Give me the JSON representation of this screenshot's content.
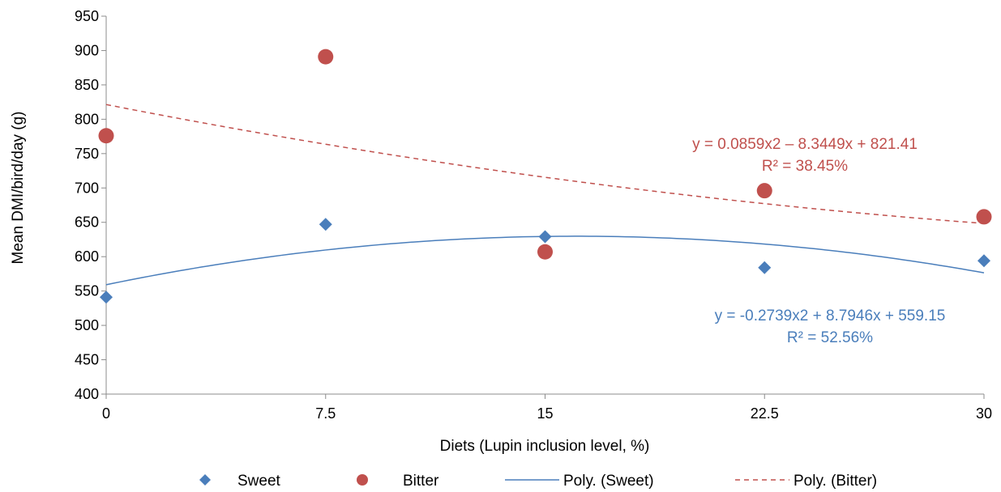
{
  "chart_data": {
    "type": "scatter",
    "xlabel": "Diets (Lupin inclusion level, %)",
    "ylabel": "Mean DMI/bird/day (g)",
    "xlim": [
      0,
      30
    ],
    "ylim": [
      400,
      950
    ],
    "x_ticks": [
      "0",
      "7.5",
      "15",
      "22.5",
      "30"
    ],
    "x_tick_values": [
      0,
      7.5,
      15,
      22.5,
      30
    ],
    "y_ticks": [
      400,
      450,
      500,
      550,
      600,
      650,
      700,
      750,
      800,
      850,
      900,
      950
    ],
    "grid": false,
    "legend_position": "bottom",
    "series": [
      {
        "name": "Sweet",
        "marker": "diamond",
        "color": "#4a7ebb",
        "x": [
          0,
          7.5,
          15,
          22.5,
          30
        ],
        "y": [
          541,
          647,
          629,
          584,
          594
        ]
      },
      {
        "name": "Bitter",
        "marker": "circle",
        "color": "#c0504d",
        "x": [
          0,
          7.5,
          15,
          22.5,
          30
        ],
        "y": [
          776,
          891,
          607,
          696,
          658
        ]
      }
    ],
    "trendlines": [
      {
        "name": "Poly. (Sweet)",
        "color": "#4a7ebb",
        "dash": "solid",
        "coefficients": [
          -0.2739,
          8.7946,
          559.15
        ],
        "equation": "y = -0.2739x2 + 8.7946x + 559.15",
        "r2": "R² = 52.56%"
      },
      {
        "name": "Poly. (Bitter)",
        "color": "#c0504d",
        "dash": "dashed",
        "coefficients": [
          0.0859,
          -8.3449,
          821.41
        ],
        "equation": "y = 0.0859x2 – 8.3449x + 821.41",
        "r2": "R² = 38.45%"
      }
    ]
  }
}
